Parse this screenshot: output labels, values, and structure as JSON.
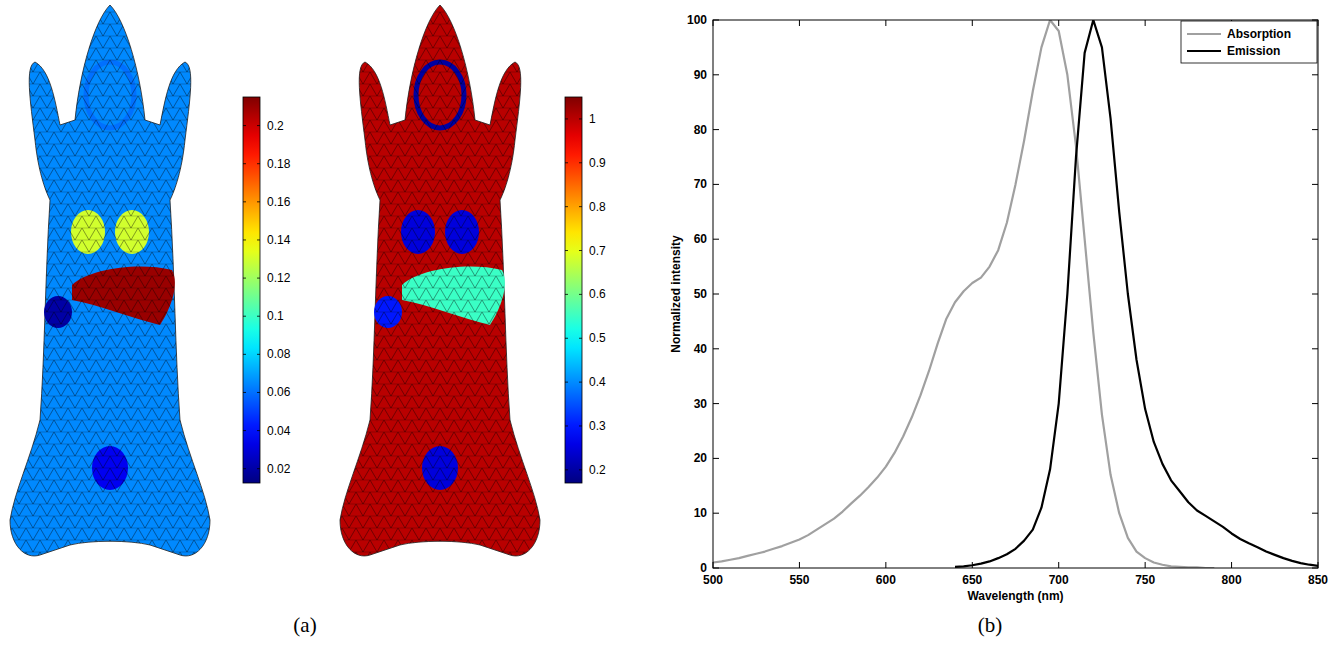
{
  "chart_data": [
    {
      "type": "mesh",
      "values": [
        0.065,
        0.06,
        0.13,
        0.21,
        0.02,
        0.035
      ],
      "colorbar": {
        "range": [
          0.0125,
          0.215
        ],
        "ticks": [
          0.02,
          0.04,
          0.06,
          0.08,
          0.1,
          0.12,
          0.14,
          0.16,
          0.18,
          0.2
        ]
      }
    },
    {
      "type": "mesh",
      "values": [
        1.0,
        0.2,
        0.25,
        0.55,
        0.3,
        0.25
      ],
      "colorbar": {
        "range": [
          0.17,
          1.05
        ],
        "ticks": [
          0.2,
          0.3,
          0.4,
          0.5,
          0.6,
          0.7,
          0.8,
          0.9,
          1
        ]
      }
    },
    {
      "type": "line",
      "x_label": "Wavelength (nm)",
      "y_label": "Normalized intensity",
      "x": [
        500,
        505,
        510,
        515,
        520,
        525,
        530,
        535,
        540,
        545,
        550,
        555,
        560,
        565,
        570,
        575,
        580,
        585,
        590,
        595,
        600,
        605,
        610,
        615,
        620,
        625,
        630,
        635,
        640,
        645,
        650,
        655,
        660,
        665,
        670,
        675,
        680,
        685,
        690,
        695,
        700,
        705,
        710,
        715,
        720,
        725,
        730,
        735,
        740,
        745,
        750,
        755,
        760,
        765,
        770,
        775,
        780,
        785,
        790,
        795,
        800,
        805,
        810,
        815,
        820,
        825,
        830,
        835,
        840,
        845,
        850
      ],
      "series": [
        {
          "name": "Absorption",
          "color": "#a0a0a0",
          "values": [
            1,
            1.2,
            1.5,
            1.8,
            2.2,
            2.6,
            3,
            3.5,
            4,
            4.6,
            5.2,
            6,
            7,
            8,
            9,
            10.3,
            11.8,
            13.2,
            14.8,
            16.5,
            18.5,
            21,
            24,
            27.5,
            31.5,
            36,
            41,
            45.5,
            48.5,
            50.5,
            52,
            53,
            55,
            58,
            63,
            70,
            78,
            87,
            95,
            100,
            98,
            90,
            77,
            60,
            43,
            28,
            17,
            10,
            5.5,
            3,
            1.8,
            1,
            0.6,
            0.3,
            0.2,
            0.1,
            0.1,
            0,
            0,
            null,
            null,
            null,
            null,
            null,
            null,
            null,
            null,
            null,
            null,
            null,
            null
          ]
        },
        {
          "name": "Emission",
          "color": "#000000",
          "values": [
            null,
            null,
            null,
            null,
            null,
            null,
            null,
            null,
            null,
            null,
            null,
            null,
            null,
            null,
            null,
            null,
            null,
            null,
            null,
            null,
            null,
            null,
            null,
            null,
            null,
            null,
            null,
            null,
            0.2,
            0.3,
            0.5,
            0.8,
            1.2,
            1.8,
            2.5,
            3.5,
            5,
            7,
            11,
            18,
            30,
            50,
            75,
            94,
            100,
            95,
            82,
            65,
            50,
            38,
            29,
            23,
            19,
            16,
            14,
            12,
            10.5,
            9.5,
            8.5,
            7.5,
            6.3,
            5.3,
            4.5,
            3.8,
            3,
            2.4,
            1.8,
            1.3,
            0.9,
            0.6,
            0.4
          ]
        }
      ],
      "xlim": [
        500,
        850
      ],
      "xticks": [
        500,
        550,
        600,
        650,
        700,
        750,
        800,
        850
      ],
      "ylim": [
        0,
        100
      ],
      "yticks": [
        0,
        10,
        20,
        30,
        40,
        50,
        60,
        70,
        80,
        90,
        100
      ],
      "grid": false,
      "legend": "upper right"
    }
  ],
  "panel_labels": [
    "(a)",
    "(b)"
  ]
}
